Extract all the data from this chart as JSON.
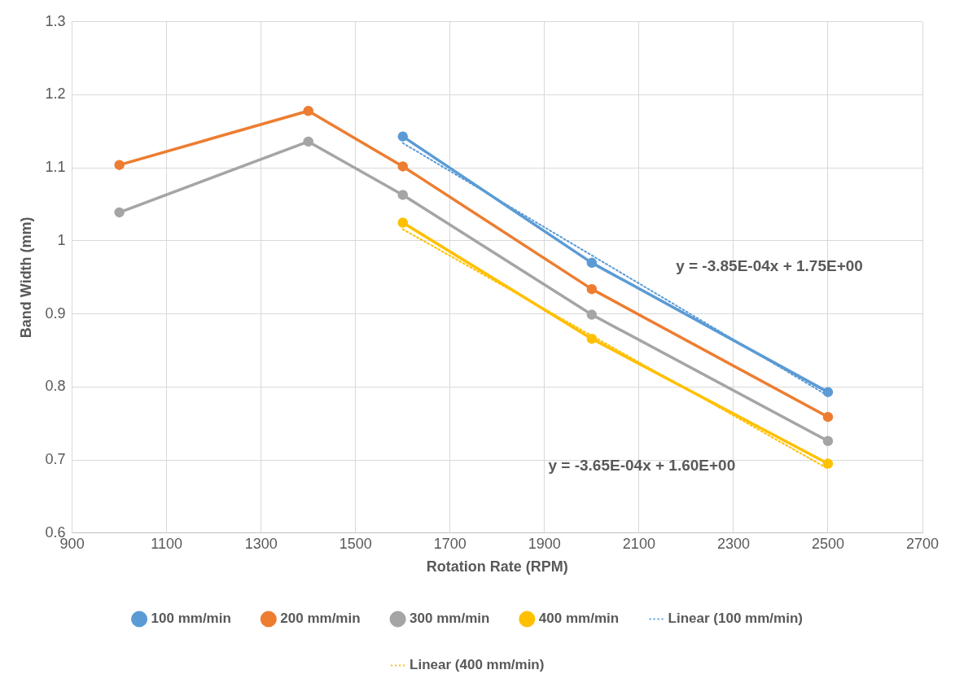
{
  "chart_data": {
    "type": "line",
    "xlabel": "Rotation Rate (RPM)",
    "ylabel": "Band Width (mm)",
    "xlim": [
      900,
      2700
    ],
    "xticks": [
      900,
      1100,
      1300,
      1500,
      1700,
      1900,
      2100,
      2300,
      2500,
      2700
    ],
    "ylim": [
      0.6,
      1.3
    ],
    "yticks": [
      0.6,
      0.7,
      0.8,
      0.9,
      1,
      1.1,
      1.2,
      1.3
    ],
    "grid": true,
    "legend": "bottom",
    "marker": "circle",
    "line_style": "solid",
    "series": [
      {
        "name": "100 mm/min",
        "color": "#5b9bd5",
        "x": [
          1600,
          2000,
          2500
        ],
        "values": [
          1.143,
          0.97,
          0.793
        ]
      },
      {
        "name": "200 mm/min",
        "color": "#ed7d31",
        "x": [
          1000,
          1400,
          1600,
          2000,
          2500
        ],
        "values": [
          1.104,
          1.178,
          1.102,
          0.934,
          0.759
        ]
      },
      {
        "name": "300 mm/min",
        "color": "#a5a5a5",
        "x": [
          1000,
          1400,
          1600,
          2000,
          2500
        ],
        "values": [
          1.039,
          1.136,
          1.063,
          0.899,
          0.726
        ]
      },
      {
        "name": "400 mm/min",
        "color": "#ffc000",
        "x": [
          1600,
          2000,
          2500
        ],
        "values": [
          1.025,
          0.866,
          0.695
        ]
      },
      {
        "name": "Linear (100 mm/min)",
        "color": "#5b9bd5",
        "x": [
          1600,
          2500
        ],
        "values": [
          1.134,
          0.788
        ],
        "marker": "none",
        "line_style": "dotted"
      },
      {
        "name": "Linear (400 mm/min)",
        "color": "#ffc000",
        "x": [
          1600,
          2500
        ],
        "values": [
          1.016,
          0.688
        ],
        "marker": "none",
        "line_style": "dotted"
      }
    ],
    "annotations": [
      "y = -3.85E-04x + 1.75E+00",
      "y = -3.65E-04x + 1.60E+00"
    ]
  }
}
